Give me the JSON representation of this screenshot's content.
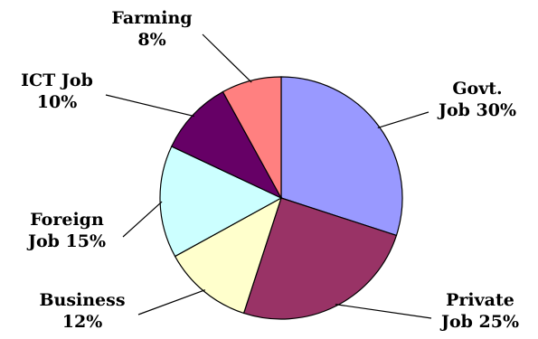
{
  "chart_data": {
    "type": "pie",
    "title": "",
    "slices": [
      {
        "name": "Govt. Job",
        "value": 30,
        "line1": "Govt.",
        "line2": "Job 30%",
        "color": "#9999ff"
      },
      {
        "name": "Private Job",
        "value": 25,
        "line1": "Private",
        "line2": "Job 25%",
        "color": "#993366"
      },
      {
        "name": "Business",
        "value": 12,
        "line1": "Business",
        "line2": "12%",
        "color": "#ffffcc"
      },
      {
        "name": "Foreign Job",
        "value": 15,
        "line1": "Foreign",
        "line2": "Job 15%",
        "color": "#ccffff"
      },
      {
        "name": "ICT Job",
        "value": 10,
        "line1": "ICT Job",
        "line2": "10%",
        "color": "#660066"
      },
      {
        "name": "Farming",
        "value": 8,
        "line1": "Farming",
        "line2": "8%",
        "color": "#ff8080"
      }
    ],
    "legend": "none"
  }
}
